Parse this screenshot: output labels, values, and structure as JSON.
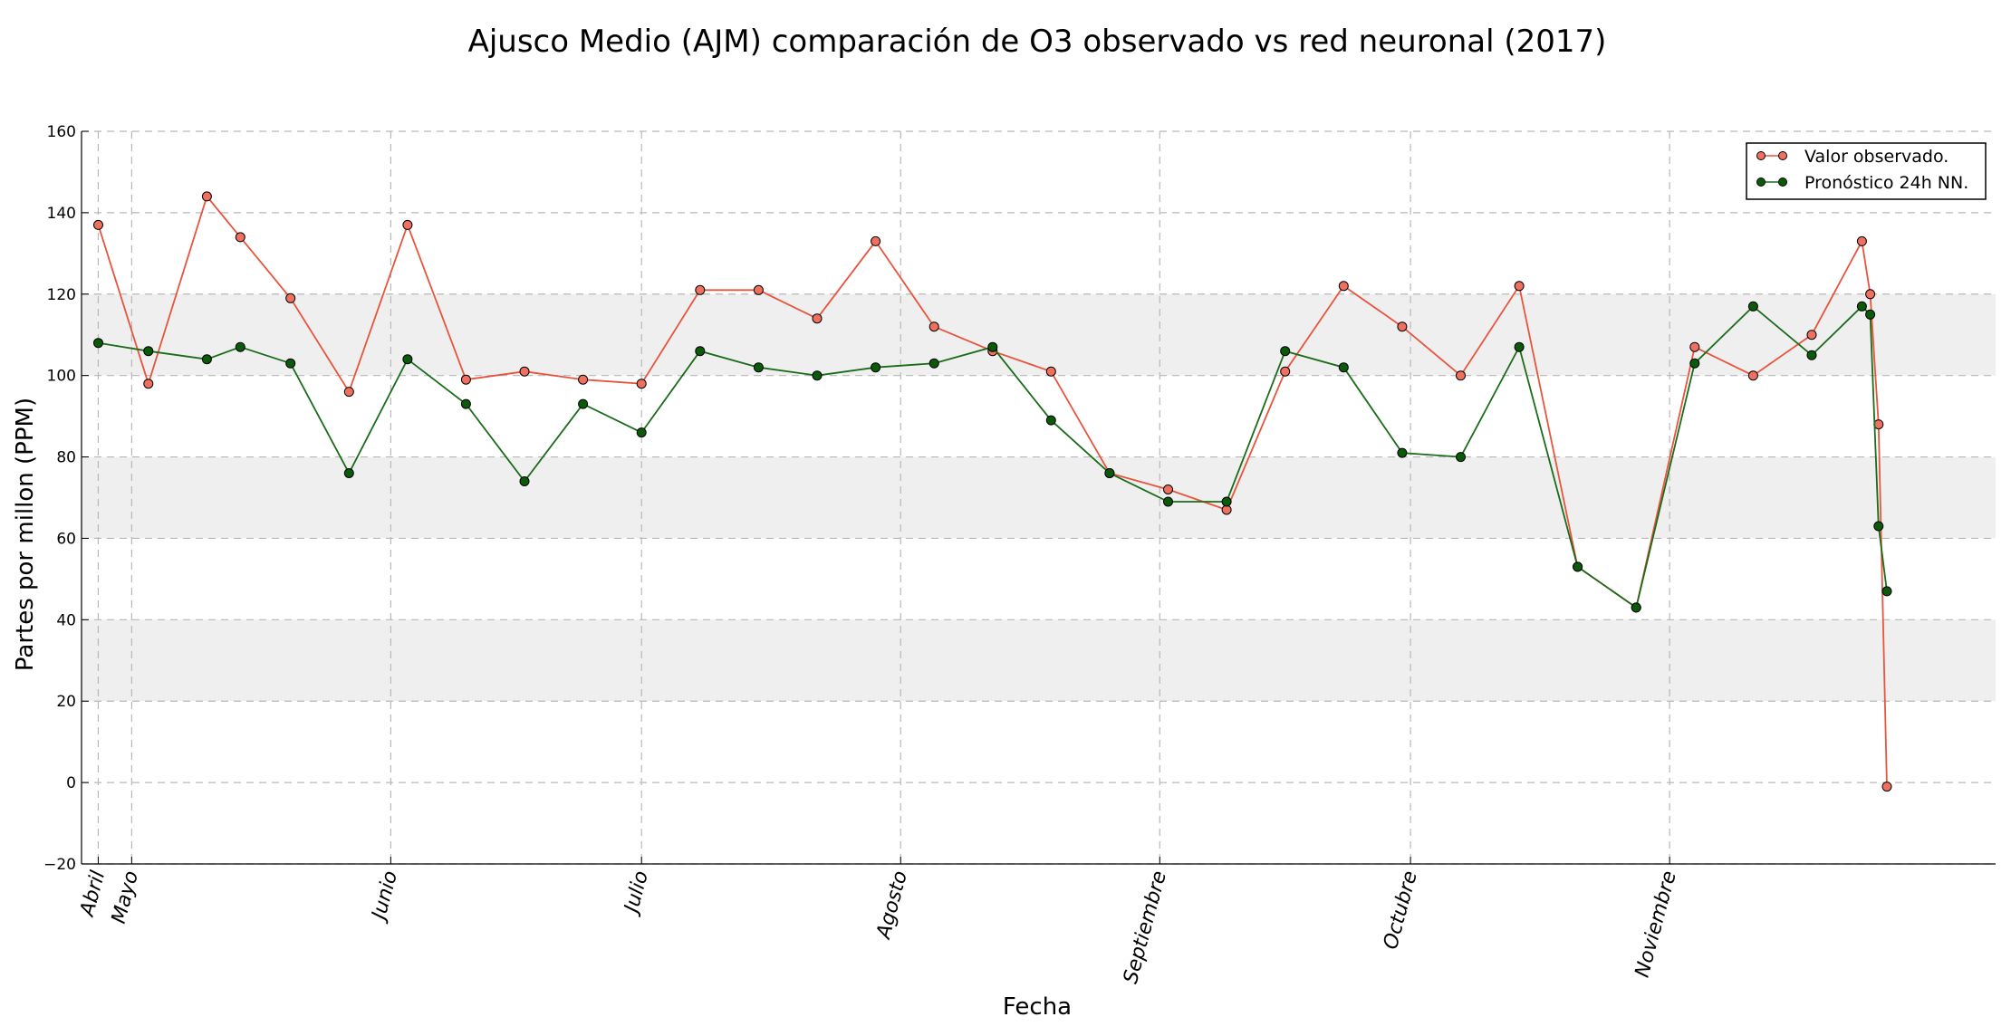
{
  "chart_data": {
    "type": "line",
    "title": "Ajusco Medio (AJM) comparación de O3 observado vs red neuronal (2017)",
    "xlabel": "Fecha",
    "ylabel": "Partes por millon (PPM)",
    "ylim": [
      -20,
      160
    ],
    "yticks": [
      -20,
      0,
      20,
      40,
      60,
      80,
      100,
      120,
      140,
      160
    ],
    "grid": true,
    "bands": [
      [
        20,
        40
      ],
      [
        60,
        80
      ],
      [
        100,
        120
      ]
    ],
    "x_type": "date",
    "xlim": [
      "2017-04-25",
      "2017-12-10"
    ],
    "xtick_labels": [
      {
        "label": "Abril",
        "date": "2017-04-27"
      },
      {
        "label": "Mayo",
        "date": "2017-05-01"
      },
      {
        "label": "Junio",
        "date": "2017-06-01"
      },
      {
        "label": "Julio",
        "date": "2017-07-01"
      },
      {
        "label": "Agosto",
        "date": "2017-08-01"
      },
      {
        "label": "Septiembre",
        "date": "2017-09-01"
      },
      {
        "label": "Octubre",
        "date": "2017-10-01"
      },
      {
        "label": "Noviembre",
        "date": "2017-11-01"
      }
    ],
    "legend_position": "top-right",
    "series": [
      {
        "name": "Valor observado.",
        "color": "#e8543c",
        "marker_color": "#f07060",
        "x": [
          "2017-04-27",
          "2017-05-03",
          "2017-05-10",
          "2017-05-14",
          "2017-05-20",
          "2017-05-27",
          "2017-06-03",
          "2017-06-10",
          "2017-06-17",
          "2017-06-24",
          "2017-07-01",
          "2017-07-08",
          "2017-07-15",
          "2017-07-22",
          "2017-07-29",
          "2017-08-05",
          "2017-08-12",
          "2017-08-19",
          "2017-08-26",
          "2017-09-02",
          "2017-09-09",
          "2017-09-16",
          "2017-09-23",
          "2017-09-30",
          "2017-10-07",
          "2017-10-14",
          "2017-10-21",
          "2017-10-28",
          "2017-11-04",
          "2017-11-11",
          "2017-11-18",
          "2017-11-24",
          "2017-11-25",
          "2017-11-26",
          "2017-11-27"
        ],
        "y": [
          137,
          98,
          144,
          134,
          119,
          96,
          137,
          99,
          101,
          99,
          98,
          121,
          121,
          114,
          133,
          112,
          106,
          101,
          76,
          72,
          67,
          101,
          122,
          112,
          100,
          122,
          53,
          43,
          107,
          100,
          110,
          133,
          120,
          88,
          -1
        ]
      },
      {
        "name": "Pronóstico 24h NN.",
        "color": "#1a6b1a",
        "marker_color": "#0a5a0a",
        "x": [
          "2017-04-27",
          "2017-05-03",
          "2017-05-10",
          "2017-05-14",
          "2017-05-20",
          "2017-05-27",
          "2017-06-03",
          "2017-06-10",
          "2017-06-17",
          "2017-06-24",
          "2017-07-01",
          "2017-07-08",
          "2017-07-15",
          "2017-07-22",
          "2017-07-29",
          "2017-08-05",
          "2017-08-12",
          "2017-08-19",
          "2017-08-26",
          "2017-09-02",
          "2017-09-09",
          "2017-09-16",
          "2017-09-23",
          "2017-09-30",
          "2017-10-07",
          "2017-10-14",
          "2017-10-21",
          "2017-10-28",
          "2017-11-04",
          "2017-11-11",
          "2017-11-18",
          "2017-11-24",
          "2017-11-25",
          "2017-11-26",
          "2017-11-27"
        ],
        "y": [
          108,
          106,
          104,
          107,
          103,
          76,
          104,
          93,
          74,
          93,
          86,
          106,
          102,
          100,
          102,
          103,
          107,
          89,
          76,
          69,
          69,
          106,
          102,
          81,
          80,
          107,
          53,
          43,
          103,
          117,
          105,
          117,
          115,
          63,
          47
        ]
      }
    ]
  }
}
